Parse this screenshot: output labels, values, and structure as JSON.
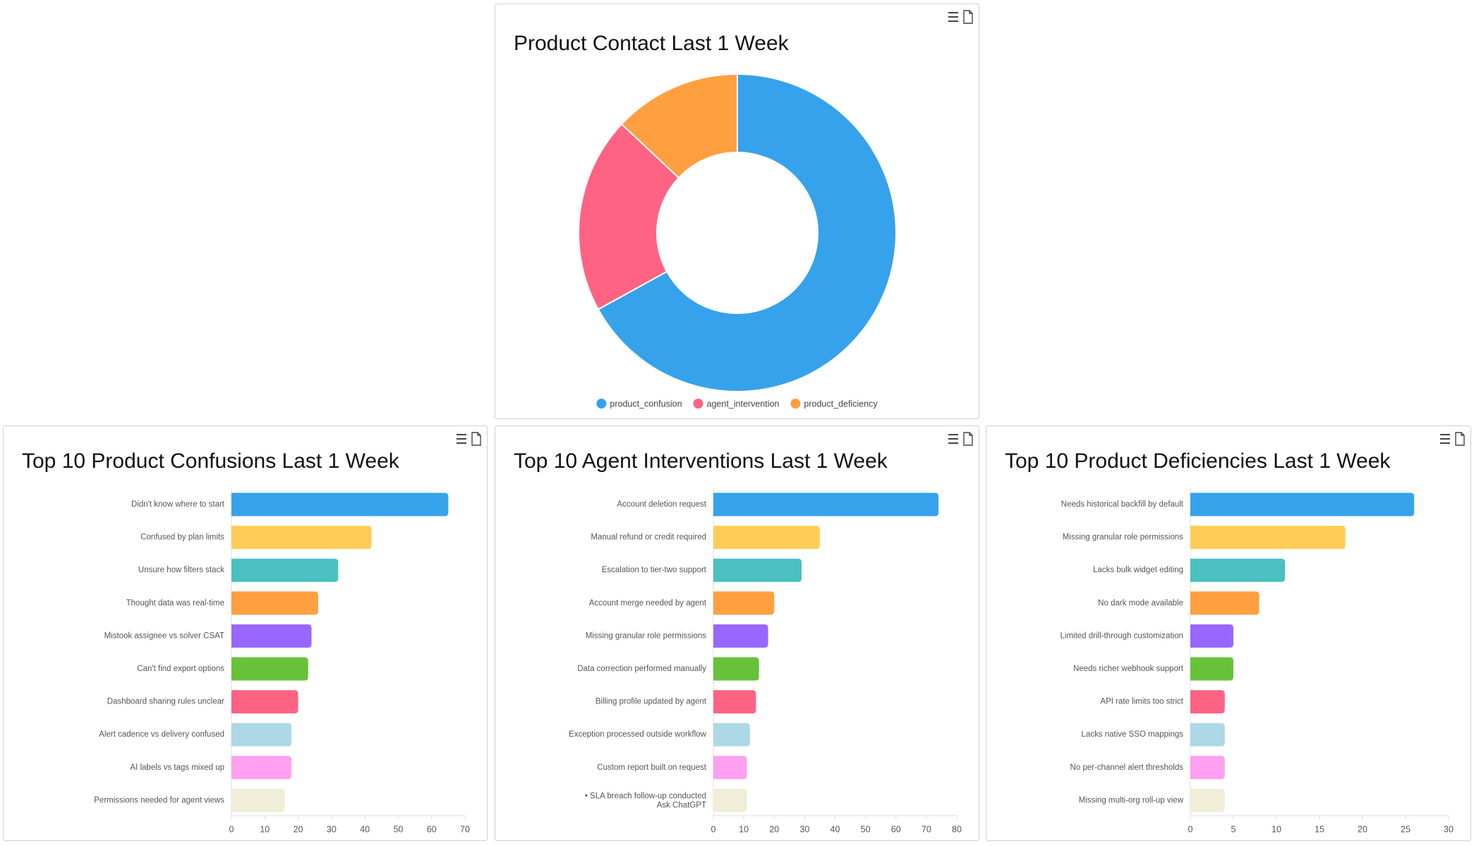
{
  "chart_data": [
    {
      "type": "donut",
      "title": "Product Contact Last 1 Week",
      "categories": [
        "product_confusion",
        "agent_intervention",
        "product_deficiency"
      ],
      "values": [
        67,
        20,
        13
      ],
      "colors": [
        "#36a2eb",
        "#ff6384",
        "#ff9f40"
      ]
    },
    {
      "type": "bar",
      "orientation": "horizontal",
      "title": "Top 10 Product Confusions Last 1 Week",
      "categories": [
        "Didn't know where to start",
        "Confused by plan limits",
        "Unsure how filters stack",
        "Thought data was real-time",
        "Mistook assignee vs solver CSAT",
        "Can't find export options",
        "Dashboard sharing rules unclear",
        "Alert cadence vs delivery confused",
        "AI labels vs tags mixed up",
        "Permissions needed for agent views"
      ],
      "values": [
        65,
        42,
        32,
        26,
        24,
        23,
        20,
        18,
        18,
        16
      ],
      "colors": [
        "#36a2eb",
        "#ffcd56",
        "#4bc0c0",
        "#ff9f40",
        "#9966ff",
        "#67c23a",
        "#ff6384",
        "#add8e6",
        "#ffa0f0",
        "#f0eed8"
      ],
      "xlim": [
        0,
        70
      ],
      "xticks": [
        0,
        10,
        20,
        30,
        40,
        50,
        60,
        70
      ]
    },
    {
      "type": "bar",
      "orientation": "horizontal",
      "title": "Top 10 Agent Interventions Last 1 Week",
      "categories": [
        "Account deletion request",
        "Manual refund or credit required",
        "Escalation to tier-two support",
        "Account merge needed by agent",
        "Missing granular role permissions",
        "Data correction performed manually",
        "Billing profile updated by agent",
        "Exception processed outside workflow",
        "Custom report built on request",
        "• SLA breach follow-up conducted"
      ],
      "annotation": "Ask ChatGPT",
      "values": [
        74,
        35,
        29,
        20,
        18,
        15,
        14,
        12,
        11,
        11
      ],
      "colors": [
        "#36a2eb",
        "#ffcd56",
        "#4bc0c0",
        "#ff9f40",
        "#9966ff",
        "#67c23a",
        "#ff6384",
        "#add8e6",
        "#ffa0f0",
        "#f0eed8"
      ],
      "xlim": [
        0,
        80
      ],
      "xticks": [
        0,
        10,
        20,
        30,
        40,
        50,
        60,
        70,
        80
      ]
    },
    {
      "type": "bar",
      "orientation": "horizontal",
      "title": "Top 10 Product Deficiencies Last 1 Week",
      "categories": [
        "Needs historical backfill by default",
        "Missing granular role permissions",
        "Lacks bulk widget editing",
        "No dark mode available",
        "Limited drill-through customization",
        "Needs richer webhook support",
        "API rate limits too strict",
        "Lacks native SSO mappings",
        "No per-channel alert thresholds",
        "Missing multi-org roll-up view"
      ],
      "values": [
        26,
        18,
        11,
        8,
        5,
        5,
        4,
        4,
        4,
        4
      ],
      "colors": [
        "#36a2eb",
        "#ffcd56",
        "#4bc0c0",
        "#ff9f40",
        "#9966ff",
        "#67c23a",
        "#ff6384",
        "#add8e6",
        "#ffa0f0",
        "#f0eed8"
      ],
      "xlim": [
        0,
        30
      ],
      "xticks": [
        0,
        5,
        10,
        15,
        20,
        25,
        30
      ]
    }
  ]
}
